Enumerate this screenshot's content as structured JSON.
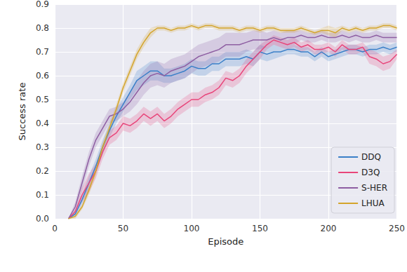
{
  "chart_data": {
    "type": "line",
    "x_label": "Episode",
    "y_label": "Success rate",
    "x": [
      0,
      5,
      10,
      15,
      20,
      25,
      30,
      35,
      40,
      45,
      50,
      55,
      60,
      65,
      70,
      75,
      80,
      85,
      90,
      95,
      100,
      105,
      110,
      115,
      120,
      125,
      130,
      135,
      140,
      145,
      150,
      155,
      160,
      165,
      170,
      175,
      180,
      185,
      190,
      195,
      200,
      205,
      210,
      215,
      220,
      225,
      230,
      235,
      240,
      245,
      250
    ],
    "xlim": [
      0,
      250
    ],
    "xticks": [
      0,
      50,
      100,
      150,
      200,
      250
    ],
    "ylim": [
      0,
      0.9
    ],
    "yticks": [
      {
        "value": 0,
        "label": "0.0"
      },
      {
        "value": 0.1,
        "label": "0.1"
      },
      {
        "value": 0.2,
        "label": "0.2"
      },
      {
        "value": 0.3,
        "label": "0.3"
      },
      {
        "value": 0.4,
        "label": "0.4"
      },
      {
        "value": 0.5,
        "label": "0.5"
      },
      {
        "value": 0.6,
        "label": "0.6"
      },
      {
        "value": 0.7,
        "label": "0.7"
      },
      {
        "value": 0.8,
        "label": "0.8"
      },
      {
        "value": 0.9,
        "label": "0.9"
      }
    ],
    "grid": true,
    "legend": "lower right",
    "series": [
      {
        "name": "DDQ",
        "color": "#3a7fc8",
        "values": [
          null,
          null,
          0,
          0.02,
          0.08,
          0.15,
          0.22,
          0.3,
          0.37,
          0.43,
          0.48,
          0.53,
          0.58,
          0.6,
          0.62,
          0.62,
          0.6,
          0.6,
          0.61,
          0.62,
          0.64,
          0.63,
          0.63,
          0.65,
          0.65,
          0.67,
          0.67,
          0.67,
          0.68,
          0.67,
          0.7,
          0.69,
          0.7,
          0.7,
          0.71,
          0.71,
          0.7,
          0.7,
          0.68,
          0.7,
          0.68,
          0.69,
          0.7,
          0.71,
          0.71,
          0.7,
          0.71,
          0.71,
          0.72,
          0.71,
          0.72
        ],
        "error": [
          null,
          null,
          0,
          0.01,
          0.02,
          0.03,
          0.03,
          0.03,
          0.03,
          0.03,
          0.03,
          0.03,
          0.04,
          0.04,
          0.04,
          0.04,
          0.03,
          0.03,
          0.03,
          0.03,
          0.03,
          0.03,
          0.03,
          0.03,
          0.03,
          0.03,
          0.03,
          0.03,
          0.03,
          0.03,
          0.03,
          0.03,
          0.03,
          0.02,
          0.02,
          0.02,
          0.02,
          0.02,
          0.02,
          0.02,
          0.02,
          0.02,
          0.02,
          0.02,
          0.02,
          0.02,
          0.02,
          0.02,
          0.02,
          0.02,
          0.02
        ]
      },
      {
        "name": "D3Q",
        "color": "#e8457a",
        "values": [
          null,
          null,
          0,
          0.03,
          0.1,
          0.15,
          0.2,
          0.28,
          0.34,
          0.36,
          0.4,
          0.39,
          0.41,
          0.44,
          0.42,
          0.44,
          0.41,
          0.43,
          0.46,
          0.48,
          0.5,
          0.5,
          0.52,
          0.53,
          0.55,
          0.59,
          0.58,
          0.6,
          0.64,
          0.67,
          0.7,
          0.73,
          0.75,
          0.74,
          0.73,
          0.74,
          0.72,
          0.73,
          0.71,
          0.71,
          0.72,
          0.7,
          0.73,
          0.71,
          0.71,
          0.72,
          0.68,
          0.67,
          0.65,
          0.66,
          0.69
        ],
        "error": [
          null,
          null,
          0,
          0.01,
          0.03,
          0.04,
          0.03,
          0.03,
          0.03,
          0.03,
          0.03,
          0.03,
          0.03,
          0.03,
          0.03,
          0.03,
          0.03,
          0.03,
          0.03,
          0.03,
          0.03,
          0.03,
          0.03,
          0.03,
          0.03,
          0.03,
          0.03,
          0.03,
          0.03,
          0.03,
          0.03,
          0.02,
          0.02,
          0.02,
          0.02,
          0.02,
          0.02,
          0.02,
          0.02,
          0.02,
          0.02,
          0.02,
          0.02,
          0.02,
          0.02,
          0.02,
          0.03,
          0.03,
          0.03,
          0.03,
          0.02
        ]
      },
      {
        "name": "S-HER",
        "color": "#8e5ea2",
        "values": [
          null,
          null,
          0,
          0.05,
          0.15,
          0.25,
          0.33,
          0.38,
          0.43,
          0.44,
          0.46,
          0.49,
          0.53,
          0.57,
          0.6,
          0.61,
          0.6,
          0.62,
          0.63,
          0.64,
          0.66,
          0.68,
          0.69,
          0.7,
          0.71,
          0.73,
          0.73,
          0.73,
          0.74,
          0.75,
          0.75,
          0.75,
          0.76,
          0.75,
          0.76,
          0.76,
          0.77,
          0.76,
          0.76,
          0.77,
          0.76,
          0.76,
          0.77,
          0.76,
          0.77,
          0.76,
          0.76,
          0.77,
          0.76,
          0.76,
          0.76
        ],
        "error": [
          null,
          null,
          0,
          0.02,
          0.03,
          0.03,
          0.03,
          0.03,
          0.03,
          0.03,
          0.03,
          0.04,
          0.05,
          0.05,
          0.05,
          0.05,
          0.05,
          0.05,
          0.05,
          0.05,
          0.05,
          0.05,
          0.05,
          0.05,
          0.05,
          0.05,
          0.05,
          0.05,
          0.04,
          0.04,
          0.04,
          0.03,
          0.03,
          0.03,
          0.03,
          0.03,
          0.02,
          0.02,
          0.02,
          0.02,
          0.02,
          0.02,
          0.02,
          0.02,
          0.02,
          0.02,
          0.02,
          0.02,
          0.02,
          0.02,
          0.02
        ]
      },
      {
        "name": "LHUA",
        "color": "#d4a52c",
        "values": [
          null,
          null,
          0,
          0.01,
          0.05,
          0.12,
          0.2,
          0.3,
          0.38,
          0.46,
          0.55,
          0.62,
          0.69,
          0.74,
          0.78,
          0.8,
          0.8,
          0.79,
          0.8,
          0.8,
          0.81,
          0.8,
          0.81,
          0.81,
          0.8,
          0.8,
          0.8,
          0.79,
          0.8,
          0.8,
          0.79,
          0.8,
          0.8,
          0.79,
          0.79,
          0.79,
          0.8,
          0.79,
          0.78,
          0.79,
          0.79,
          0.78,
          0.8,
          0.79,
          0.8,
          0.79,
          0.8,
          0.8,
          0.81,
          0.81,
          0.8
        ],
        "error": [
          null,
          null,
          0,
          0.01,
          0.01,
          0.02,
          0.02,
          0.02,
          0.02,
          0.02,
          0.02,
          0.02,
          0.02,
          0.02,
          0.02,
          0.01,
          0.01,
          0.01,
          0.01,
          0.01,
          0.01,
          0.01,
          0.01,
          0.01,
          0.01,
          0.01,
          0.01,
          0.01,
          0.01,
          0.01,
          0.01,
          0.01,
          0.01,
          0.01,
          0.01,
          0.01,
          0.01,
          0.01,
          0.01,
          0.01,
          0.02,
          0.02,
          0.01,
          0.01,
          0.01,
          0.01,
          0.01,
          0.01,
          0.01,
          0.01,
          0.01
        ]
      }
    ]
  }
}
